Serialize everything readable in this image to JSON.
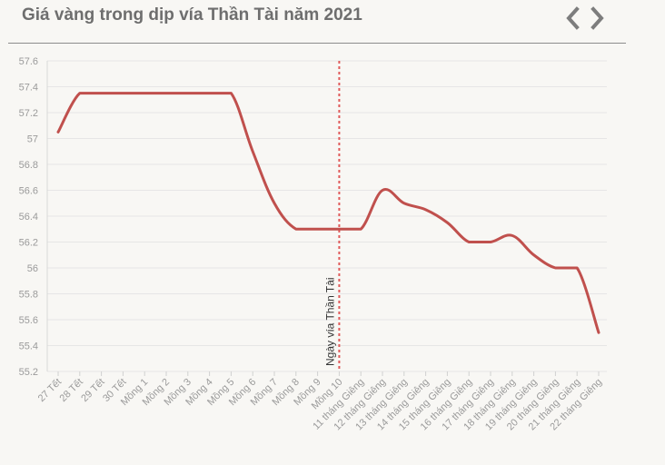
{
  "header": {
    "title": "Giá vàng trong dịp vía Thần Tài năm 2021"
  },
  "colors": {
    "line": "#c0504d",
    "marker_line": "#e05a5a",
    "title": "#6e6e6e",
    "nav": "#7d7d7d"
  },
  "icons": {
    "prev": "chevron-left-icon",
    "next": "chevron-right-icon"
  },
  "chart_data": {
    "type": "line",
    "title": "Giá vàng trong dịp vía Thần Tài năm 2021",
    "xlabel": "",
    "ylabel": "",
    "categories": [
      "27 Tết",
      "28 Tết",
      "29 Tết",
      "30 Tết",
      "Mồng 1",
      "Mồng 2",
      "Mồng 3",
      "Mồng 4",
      "Mồng 5",
      "Mồng 6",
      "Mồng 7",
      "Mồng 8",
      "Mồng 9",
      "Mồng 10",
      "11 tháng Giêng",
      "12 tháng Giêng",
      "13 tháng Giêng",
      "14 tháng Giêng",
      "15 tháng Giêng",
      "16 tháng Giêng",
      "17 tháng Giêng",
      "18 tháng Giêng",
      "19 tháng Giêng",
      "20 tháng Giêng",
      "21 tháng Giêng",
      "22 tháng Giêng"
    ],
    "series": [
      {
        "values": [
          57.05,
          57.35,
          57.35,
          57.35,
          57.35,
          57.35,
          57.35,
          57.35,
          57.35,
          56.9,
          56.5,
          56.3,
          56.3,
          56.3,
          56.3,
          56.6,
          56.5,
          56.45,
          56.35,
          56.2,
          56.2,
          56.25,
          56.1,
          56.0,
          56.0,
          55.5
        ]
      }
    ],
    "ylim": [
      55.2,
      57.6
    ],
    "yticks": [
      "55.2",
      "55.4",
      "55.6",
      "55.8",
      "56",
      "56.2",
      "56.4",
      "56.6",
      "56.8",
      "57",
      "57.2",
      "57.4",
      "57.6"
    ],
    "grid": true,
    "legend": "none",
    "annotation": {
      "text": "Ngày vía Thần Tài",
      "category": "Mồng 10",
      "style": "dashed vertical line"
    }
  }
}
